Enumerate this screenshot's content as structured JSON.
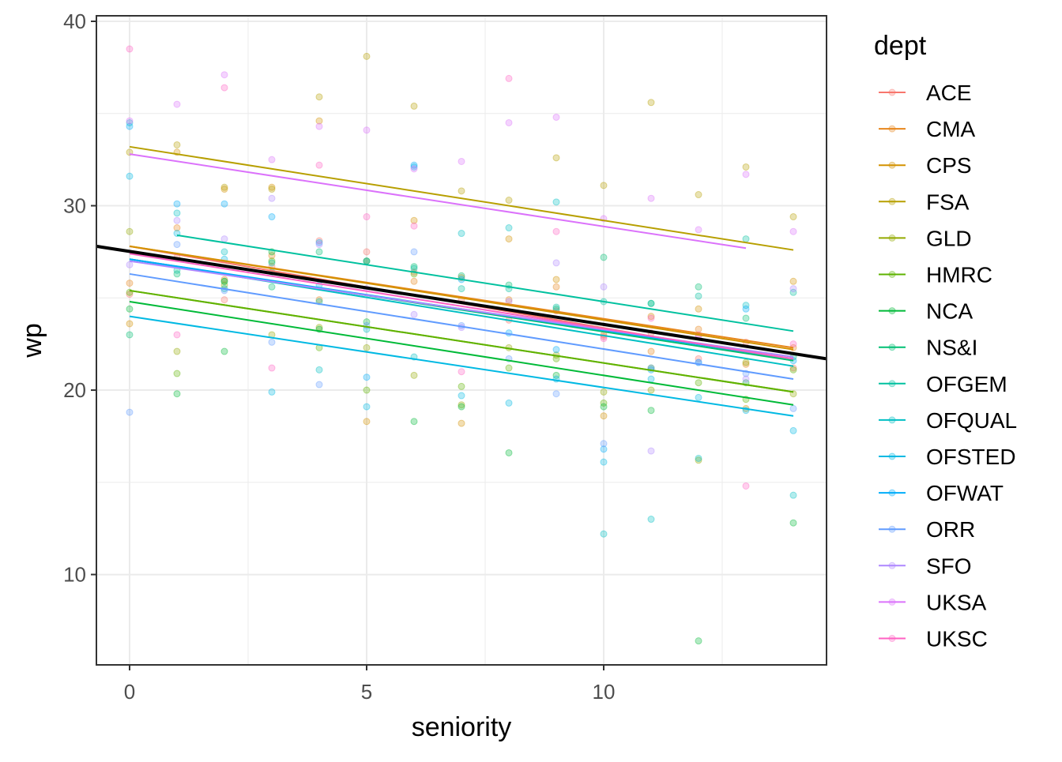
{
  "chart_data": {
    "type": "scatter",
    "title": "",
    "xlabel": "seniority",
    "ylabel": "wp",
    "xlim": [
      -0.7,
      14.7
    ],
    "ylim": [
      5.1,
      40.3
    ],
    "x_ticks": [
      0,
      5,
      10
    ],
    "y_ticks": [
      10,
      20,
      30,
      40
    ],
    "grid": true,
    "point_alpha": 0.3,
    "legend": {
      "title": "dept",
      "position": "right"
    },
    "series": [
      {
        "name": "ACE",
        "color": "#F8766D",
        "fit": [
          0,
          27.8,
          14,
          21.6
        ],
        "points": [
          [
            0,
            25.2
          ],
          [
            1,
            27.2
          ],
          [
            2,
            24.9
          ],
          [
            3,
            26.7
          ],
          [
            4,
            28.1
          ],
          [
            5,
            27.5
          ],
          [
            6,
            26.4
          ],
          [
            7,
            24.9
          ],
          [
            8,
            23.8
          ],
          [
            9,
            24.3
          ],
          [
            10,
            22.9
          ],
          [
            11,
            23.1
          ],
          [
            12,
            21.7
          ],
          [
            13,
            22.6
          ],
          [
            14,
            21.2
          ]
        ]
      },
      {
        "name": "CMA",
        "color": "#E7861B",
        "fit": [
          0,
          27.8,
          14,
          22.3
        ],
        "points": [
          [
            0,
            25.8
          ],
          [
            1,
            28.8
          ],
          [
            2,
            26.0
          ],
          [
            3,
            27.3
          ],
          [
            4,
            24.9
          ],
          [
            5,
            27.0
          ],
          [
            6,
            25.9
          ],
          [
            7,
            26.1
          ],
          [
            8,
            24.9
          ],
          [
            9,
            25.6
          ],
          [
            10,
            23.0
          ],
          [
            11,
            22.1
          ],
          [
            12,
            23.3
          ],
          [
            13,
            21.4
          ],
          [
            14,
            22.3
          ]
        ]
      },
      {
        "name": "CPS",
        "color": "#D39200",
        "fit": [
          0,
          27.8,
          14,
          22.2
        ],
        "points": [
          [
            0,
            23.6
          ],
          [
            1,
            32.9
          ],
          [
            2,
            30.9
          ],
          [
            3,
            31.0
          ],
          [
            4,
            34.6
          ],
          [
            5,
            18.3
          ],
          [
            6,
            29.2
          ],
          [
            7,
            18.2
          ],
          [
            8,
            28.2
          ],
          [
            9,
            26.0
          ],
          [
            10,
            18.6
          ],
          [
            11,
            24.0
          ],
          [
            12,
            24.4
          ],
          [
            13,
            19.0
          ],
          [
            14,
            25.9
          ]
        ]
      },
      {
        "name": "FSA",
        "color": "#B79F00",
        "fit": [
          0,
          33.2,
          14,
          27.6
        ],
        "points": [
          [
            0,
            32.9
          ],
          [
            1,
            33.3
          ],
          [
            2,
            31.0
          ],
          [
            3,
            30.9
          ],
          [
            4,
            35.9
          ],
          [
            5,
            38.1
          ],
          [
            6,
            35.4
          ],
          [
            7,
            30.8
          ],
          [
            8,
            30.3
          ],
          [
            9,
            32.6
          ],
          [
            10,
            31.1
          ],
          [
            11,
            35.6
          ],
          [
            12,
            30.6
          ],
          [
            13,
            32.1
          ],
          [
            14,
            29.4
          ]
        ]
      },
      {
        "name": "GLD",
        "color": "#93AA00",
        "fit": [
          0,
          25.4,
          14,
          19.9
        ],
        "points": [
          [
            0,
            28.6
          ],
          [
            1,
            22.1
          ],
          [
            2,
            25.7
          ],
          [
            3,
            23.0
          ],
          [
            4,
            23.4
          ],
          [
            5,
            22.3
          ],
          [
            6,
            20.8
          ],
          [
            7,
            19.2
          ],
          [
            8,
            22.3
          ],
          [
            9,
            21.9
          ],
          [
            10,
            19.9
          ],
          [
            11,
            20.0
          ],
          [
            12,
            16.2
          ],
          [
            13,
            21.5
          ],
          [
            14,
            19.8
          ]
        ]
      },
      {
        "name": "HMRC",
        "color": "#5EB300",
        "fit": [
          0,
          25.4,
          14,
          19.9
        ],
        "points": [
          [
            0,
            25.3
          ],
          [
            1,
            20.9
          ],
          [
            2,
            25.9
          ],
          [
            3,
            27.0
          ],
          [
            4,
            22.3
          ],
          [
            5,
            20.0
          ],
          [
            6,
            26.3
          ],
          [
            7,
            20.2
          ],
          [
            8,
            21.2
          ],
          [
            9,
            21.7
          ],
          [
            10,
            19.3
          ],
          [
            11,
            21.2
          ],
          [
            12,
            20.4
          ],
          [
            13,
            19.5
          ],
          [
            14,
            21.1
          ]
        ]
      },
      {
        "name": "NCA",
        "color": "#00BA38",
        "fit": [
          0,
          24.8,
          14,
          19.2
        ],
        "points": [
          [
            0,
            24.4
          ],
          [
            1,
            19.8
          ],
          [
            2,
            22.1
          ],
          [
            3,
            27.5
          ],
          [
            4,
            23.3
          ],
          [
            5,
            23.7
          ],
          [
            6,
            18.3
          ],
          [
            7,
            19.1
          ],
          [
            8,
            16.6
          ],
          [
            9,
            20.8
          ],
          [
            10,
            19.1
          ],
          [
            11,
            18.9
          ],
          [
            12,
            6.4
          ],
          [
            13,
            20.4
          ],
          [
            14,
            12.8
          ]
        ]
      },
      {
        "name": "NS&I",
        "color": "#00BF74",
        "fit": [
          0,
          27.1,
          14,
          21.6
        ],
        "points": [
          [
            0,
            23.0
          ],
          [
            1,
            26.3
          ],
          [
            2,
            25.9
          ],
          [
            3,
            25.6
          ],
          [
            4,
            27.5
          ],
          [
            5,
            27.0
          ],
          [
            6,
            26.7
          ],
          [
            7,
            26.2
          ],
          [
            8,
            25.7
          ],
          [
            9,
            24.4
          ],
          [
            10,
            27.2
          ],
          [
            11,
            24.7
          ],
          [
            12,
            25.6
          ],
          [
            13,
            23.9
          ],
          [
            14,
            21.8
          ]
        ]
      },
      {
        "name": "OFGEM",
        "color": "#00C19F",
        "fit": [
          1,
          28.4,
          14,
          23.2
        ],
        "points": [
          [
            1,
            26.5
          ],
          [
            2,
            25.5
          ],
          [
            3,
            26.9
          ],
          [
            4,
            24.8
          ],
          [
            5,
            27.0
          ],
          [
            6,
            26.6
          ],
          [
            7,
            25.5
          ],
          [
            8,
            25.5
          ],
          [
            9,
            24.5
          ],
          [
            10,
            24.8
          ],
          [
            11,
            24.7
          ],
          [
            12,
            25.1
          ],
          [
            13,
            28.2
          ],
          [
            14,
            25.3
          ]
        ]
      },
      {
        "name": "OFQUAL",
        "color": "#00BFC4",
        "fit": [
          0,
          27.1,
          14,
          21.3
        ],
        "points": [
          [
            0,
            34.5
          ],
          [
            1,
            29.6
          ],
          [
            2,
            27.5
          ],
          [
            3,
            26.4
          ],
          [
            4,
            21.1
          ],
          [
            5,
            23.3
          ],
          [
            6,
            21.8
          ],
          [
            7,
            28.5
          ],
          [
            8,
            28.8
          ],
          [
            9,
            30.2
          ],
          [
            10,
            12.2
          ],
          [
            11,
            13.0
          ],
          [
            12,
            16.3
          ],
          [
            13,
            24.6
          ],
          [
            14,
            14.3
          ]
        ]
      },
      {
        "name": "OFSTED",
        "color": "#00B9E3",
        "fit": [
          0,
          24.0,
          14,
          18.6
        ],
        "points": [
          [
            0,
            31.6
          ],
          [
            1,
            28.5
          ],
          [
            2,
            27.1
          ],
          [
            3,
            19.9
          ],
          [
            4,
            25.7
          ],
          [
            5,
            19.1
          ],
          [
            6,
            32.1
          ],
          [
            7,
            19.7
          ],
          [
            8,
            19.3
          ],
          [
            9,
            20.6
          ],
          [
            10,
            16.1
          ],
          [
            11,
            20.6
          ],
          [
            12,
            19.6
          ],
          [
            13,
            18.9
          ],
          [
            14,
            17.8
          ]
        ]
      },
      {
        "name": "OFWAT",
        "color": "#00ADFA",
        "fit": [
          0,
          27.1,
          14,
          21.7
        ],
        "points": [
          [
            0,
            34.3
          ],
          [
            1,
            30.1
          ],
          [
            2,
            30.1
          ],
          [
            3,
            29.4
          ],
          [
            4,
            28.0
          ],
          [
            5,
            20.7
          ],
          [
            6,
            32.2
          ],
          [
            7,
            26.0
          ],
          [
            8,
            23.1
          ],
          [
            9,
            22.2
          ],
          [
            10,
            16.8
          ],
          [
            11,
            21.1
          ],
          [
            12,
            21.5
          ],
          [
            13,
            24.4
          ],
          [
            14,
            21.6
          ]
        ]
      },
      {
        "name": "ORR",
        "color": "#619CFF",
        "fit": [
          0,
          26.3,
          14,
          20.6
        ],
        "points": [
          [
            0,
            18.8
          ],
          [
            1,
            27.9
          ],
          [
            2,
            25.4
          ],
          [
            3,
            22.6
          ],
          [
            4,
            20.3
          ],
          [
            5,
            23.5
          ],
          [
            6,
            27.5
          ],
          [
            7,
            23.5
          ],
          [
            8,
            21.7
          ],
          [
            9,
            19.8
          ],
          [
            10,
            17.1
          ],
          [
            11,
            21.2
          ],
          [
            12,
            21.5
          ],
          [
            13,
            20.9
          ],
          [
            14,
            19.0
          ]
        ]
      },
      {
        "name": "SFO",
        "color": "#AE87FF",
        "fit": [
          0,
          27.0,
          14,
          21.8
        ],
        "points": [
          [
            0,
            26.8
          ],
          [
            1,
            29.2
          ],
          [
            2,
            28.2
          ],
          [
            3,
            30.4
          ],
          [
            4,
            27.9
          ],
          [
            5,
            25.5
          ],
          [
            6,
            24.1
          ],
          [
            7,
            23.4
          ],
          [
            8,
            24.8
          ],
          [
            9,
            26.9
          ],
          [
            10,
            25.6
          ],
          [
            11,
            16.7
          ],
          [
            12,
            22.9
          ],
          [
            13,
            20.6
          ],
          [
            14,
            25.5
          ]
        ]
      },
      {
        "name": "UKSA",
        "color": "#DB72FB",
        "fit": [
          0,
          32.8,
          13,
          27.7
        ],
        "points": [
          [
            0,
            34.6
          ],
          [
            1,
            35.5
          ],
          [
            2,
            37.1
          ],
          [
            3,
            32.5
          ],
          [
            4,
            34.3
          ],
          [
            5,
            34.1
          ],
          [
            6,
            32.0
          ],
          [
            7,
            32.4
          ],
          [
            8,
            34.5
          ],
          [
            9,
            34.8
          ],
          [
            10,
            29.3
          ],
          [
            11,
            30.4
          ],
          [
            12,
            28.7
          ],
          [
            13,
            31.7
          ],
          [
            14,
            28.6
          ]
        ]
      },
      {
        "name": "UKSC",
        "color": "#FF61C3",
        "fit": [
          0,
          27.4,
          14,
          21.7
        ],
        "points": [
          [
            0,
            38.5
          ],
          [
            1,
            23.0
          ],
          [
            2,
            36.4
          ],
          [
            3,
            21.2
          ],
          [
            4,
            32.2
          ],
          [
            5,
            29.4
          ],
          [
            6,
            28.9
          ],
          [
            7,
            21.0
          ],
          [
            8,
            36.9
          ],
          [
            9,
            28.6
          ],
          [
            10,
            22.8
          ],
          [
            11,
            23.9
          ],
          [
            12,
            23.0
          ],
          [
            13,
            14.8
          ],
          [
            14,
            22.5
          ]
        ]
      }
    ],
    "overall_fit": {
      "color": "#000000",
      "x": [
        -0.7,
        14.7
      ],
      "y": [
        27.8,
        21.7
      ]
    }
  }
}
